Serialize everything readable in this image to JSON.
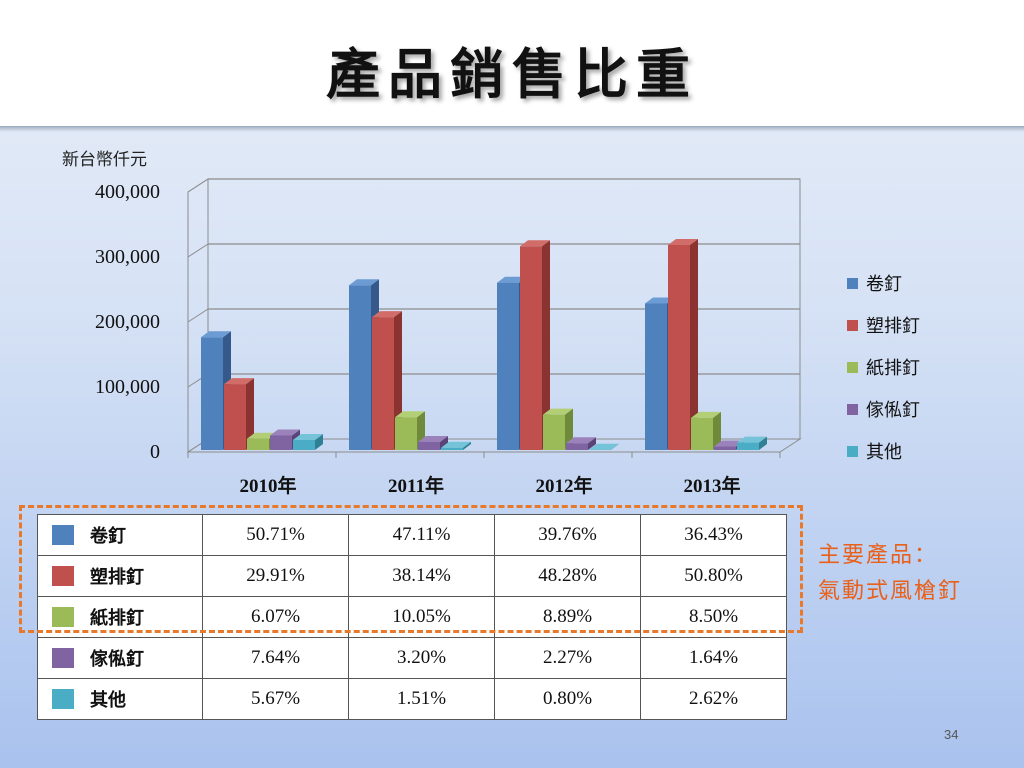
{
  "slide": {
    "title": "產品銷售比重",
    "unit": "新台幣仟元",
    "note_line1": "主要產品：",
    "note_line2": "氣動式風槍釘",
    "page_number": "34"
  },
  "chart_data": {
    "type": "bar",
    "title": "",
    "ylabel": "新台幣仟元",
    "categories": [
      "2010年",
      "2011年",
      "2012年",
      "2013年"
    ],
    "ylim": [
      0,
      400000
    ],
    "yticks": [
      "0",
      "100,000",
      "200,000",
      "300,000",
      "400,000"
    ],
    "ytick_values": [
      0,
      100000,
      200000,
      300000,
      400000
    ],
    "series": [
      {
        "name": "卷釘",
        "color": "#4f81bd",
        "side": "#34598a",
        "top": "#6d9bd3",
        "values": [
          178000,
          258000,
          262000,
          230000
        ]
      },
      {
        "name": "塑排釘",
        "color": "#c0504d",
        "side": "#8a3330",
        "top": "#d26c69",
        "values": [
          106000,
          209000,
          318000,
          320000
        ]
      },
      {
        "name": "紙排釘",
        "color": "#9bbb59",
        "side": "#6e8a3a",
        "top": "#b3cf76",
        "values": [
          22000,
          55000,
          59000,
          54000
        ]
      },
      {
        "name": "傢俬釘",
        "color": "#8064a2",
        "side": "#5a4477",
        "top": "#9b82bb",
        "values": [
          27000,
          17000,
          15000,
          10000
        ]
      },
      {
        "name": "其他",
        "color": "#4bacc6",
        "side": "#2f7f95",
        "top": "#74c3d8",
        "values": [
          20000,
          8000,
          5000,
          16000
        ]
      }
    ],
    "grid": true,
    "legend": "right"
  },
  "table": {
    "rows": [
      {
        "name": "卷釘",
        "color": "#4f81bd",
        "cells": [
          "50.71%",
          "47.11%",
          "39.76%",
          "36.43%"
        ]
      },
      {
        "name": "塑排釘",
        "color": "#c0504d",
        "cells": [
          "29.91%",
          "38.14%",
          "48.28%",
          "50.80%"
        ]
      },
      {
        "name": "紙排釘",
        "color": "#9bbb59",
        "cells": [
          "6.07%",
          "10.05%",
          "8.89%",
          "8.50%"
        ]
      },
      {
        "name": "傢俬釘",
        "color": "#8064a2",
        "cells": [
          "7.64%",
          "3.20%",
          "2.27%",
          "1.64%"
        ]
      },
      {
        "name": "其他",
        "color": "#4bacc6",
        "cells": [
          "5.67%",
          "1.51%",
          "0.80%",
          "2.62%"
        ]
      }
    ]
  }
}
